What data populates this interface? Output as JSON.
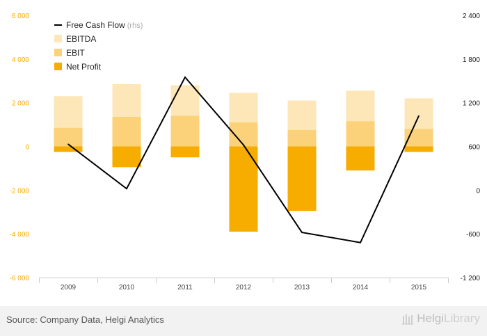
{
  "chart_data": {
    "type": "bar",
    "categories": [
      "2009",
      "2010",
      "2011",
      "2012",
      "2013",
      "2014",
      "2015"
    ],
    "series": [
      {
        "name": "EBITDA",
        "type": "bar",
        "axis": "left",
        "color": "#fde7b8",
        "values": [
          2300,
          2850,
          2800,
          2450,
          2100,
          2550,
          2200
        ]
      },
      {
        "name": "EBIT",
        "type": "bar",
        "axis": "left",
        "color": "#fbd27a",
        "values": [
          850,
          1350,
          1400,
          1100,
          750,
          1150,
          800
        ]
      },
      {
        "name": "Net Profit",
        "type": "bar",
        "axis": "left",
        "color": "#f7ac00",
        "values": [
          -250,
          -950,
          -500,
          -3900,
          -2950,
          -1100,
          -250
        ]
      },
      {
        "name": "Free Cash Flow",
        "type": "line",
        "axis": "right",
        "color": "#000000",
        "values": [
          630,
          20,
          1550,
          620,
          -580,
          -720,
          1020
        ]
      }
    ],
    "legend": [
      {
        "label": "Free Cash Flow",
        "suffix": "(rhs)",
        "kind": "line",
        "color": "#000000"
      },
      {
        "label": "EBITDA",
        "kind": "box",
        "color": "#fde7b8"
      },
      {
        "label": "EBIT",
        "kind": "box",
        "color": "#fbd27a"
      },
      {
        "label": "Net Profit",
        "kind": "box",
        "color": "#f7ac00"
      }
    ],
    "y_left": {
      "ylim": [
        -6000,
        6000
      ],
      "ticks": [
        6000,
        4000,
        2000,
        0,
        -2000,
        -4000,
        -6000
      ],
      "tick_labels": [
        "6 000",
        "4 000",
        "2 000",
        "0",
        "-2 000",
        "-4 000",
        "-6 000"
      ],
      "color": "#f7ac00"
    },
    "y_right": {
      "ylim": [
        -1200,
        2400
      ],
      "ticks": [
        2400,
        1800,
        1200,
        600,
        0,
        -600,
        -1200
      ],
      "tick_labels": [
        "2 400",
        "1 800",
        "1 200",
        "600",
        "0",
        "-600",
        "-1 200"
      ],
      "color": "#222222"
    },
    "legend_position": "top-left",
    "grid": false
  },
  "footer": {
    "source": "Source: Company Data, Helgi Analytics",
    "brand_part1": "Helgi",
    "brand_part2": "Library"
  }
}
